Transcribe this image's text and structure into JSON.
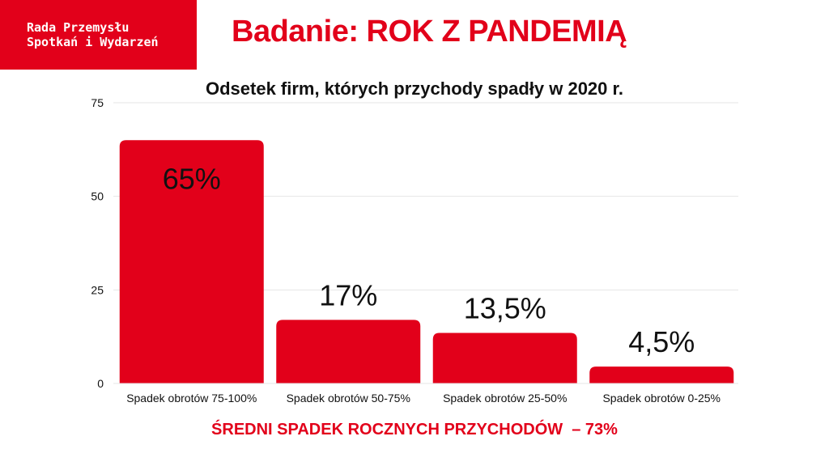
{
  "logo": {
    "line1": "Rada Przemysłu",
    "line2": "Spotkań i Wydarzeń"
  },
  "header": {
    "title": "Badanie: ROK Z PANDEMIĄ"
  },
  "footer": {
    "note": "ŚREDNI SPADEK ROCZNYCH PRZYCHODÓW  – 73%"
  },
  "colors": {
    "accent": "#e2001a",
    "text": "#111111",
    "grid": "#e6e6e6"
  },
  "chart_data": {
    "type": "bar",
    "title": "Odsetek firm, których przychody spadły w 2020 r.",
    "xlabel": "",
    "ylabel": "",
    "categories": [
      "Spadek obrotów 75-100%",
      "Spadek obrotów 50-75%",
      "Spadek obrotów 25-50%",
      "Spadek obrotów 0-25%"
    ],
    "values": [
      65,
      17,
      13.5,
      4.5
    ],
    "data_labels": [
      "65%",
      "17%",
      "13,5%",
      "4,5%"
    ],
    "ylim": [
      0,
      75
    ],
    "yticks": [
      0,
      25,
      50,
      75
    ],
    "ytick_labels": [
      "0",
      "25",
      "50",
      "75"
    ],
    "grid": true,
    "legend": "none"
  }
}
